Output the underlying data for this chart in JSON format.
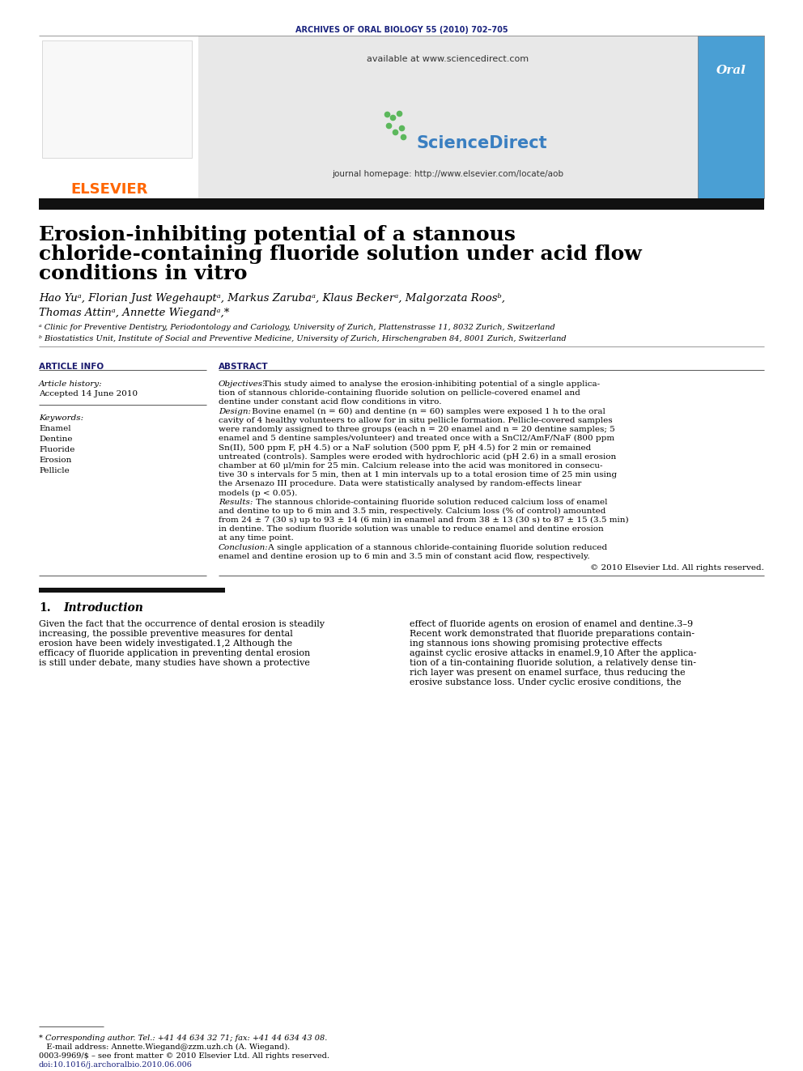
{
  "journal_header": "ARCHIVES OF ORAL BIOLOGY 55 (2010) 702–705",
  "journal_header_color": "#1a237e",
  "available_text": "available at www.sciencedirect.com",
  "journal_homepage": "journal homepage: http://www.elsevier.com/locate/aob",
  "elsevier_color": "#FF6600",
  "title_line1": "Erosion-inhibiting potential of a stannous",
  "title_line2": "chloride-containing fluoride solution under acid flow",
  "title_line3": "conditions in vitro",
  "authors": "Hao Yuᵃ, Florian Just Wegehauptᵃ, Markus Zarubaᵃ, Klaus Beckerᵃ, Malgorzata Roosᵇ,",
  "authors2": "Thomas Attinᵃ, Annette Wiegandᵃ,*",
  "affil_a": "ᵃ Clinic for Preventive Dentistry, Periodontology and Cariology, University of Zurich, Plattenstrasse 11, 8032 Zurich, Switzerland",
  "affil_b": "ᵇ Biostatistics Unit, Institute of Social and Preventive Medicine, University of Zurich, Hirschengraben 84, 8001 Zurich, Switzerland",
  "article_info_header": "ARTICLE INFO",
  "article_history": "Article history:",
  "accepted_date": "Accepted 14 June 2010",
  "keywords_header": "Keywords:",
  "keywords": [
    "Enamel",
    "Dentine",
    "Fluoride",
    "Erosion",
    "Pellicle"
  ],
  "abstract_header": "ABSTRACT",
  "abs_obj_label": "Objectives:",
  "abs_obj_text": " This study aimed to analyse the erosion-inhibiting potential of a single applica-\ntion of stannous chloride-containing fluoride solution on pellicle-covered enamel and\ndentine under constant acid flow conditions in vitro.",
  "abs_des_label": "Design:",
  "abs_des_text": " Bovine enamel (n = 60) and dentine (n = 60) samples were exposed 1 h to the oral\ncavity of 4 healthy volunteers to allow for in situ pellicle formation. Pellicle-covered samples\nwere randomly assigned to three groups (each n = 20 enamel and n = 20 dentine samples; 5\nenamel and 5 dentine samples/volunteer) and treated once with a SnCl2/AmF/NaF (800 ppm\nSn(II), 500 ppm F, pH 4.5) or a NaF solution (500 ppm F, pH 4.5) for 2 min or remained\nuntreated (controls). Samples were eroded with hydrochloric acid (pH 2.6) in a small erosion\nchamber at 60 μl/min for 25 min. Calcium release into the acid was monitored in consecu-\ntive 30 s intervals for 5 min, then at 1 min intervals up to a total erosion time of 25 min using\nthe Arsenazo III procedure. Data were statistically analysed by random-effects linear\nmodels (p < 0.05).",
  "abs_res_label": "Results:",
  "abs_res_text": " The stannous chloride-containing fluoride solution reduced calcium loss of enamel\nand dentine to up to 6 min and 3.5 min, respectively. Calcium loss (% of control) amounted\nfrom 24 ± 7 (30 s) up to 93 ± 14 (6 min) in enamel and from 38 ± 13 (30 s) to 87 ± 15 (3.5 min)\nin dentine. The sodium fluoride solution was unable to reduce enamel and dentine erosion\nat any time point.",
  "abs_con_label": "Conclusion:",
  "abs_con_text": " A single application of a stannous chloride-containing fluoride solution reduced\nenamel and dentine erosion up to 6 min and 3.5 min of constant acid flow, respectively.",
  "abstract_copyright": "© 2010 Elsevier Ltd. All rights reserved.",
  "section1_number": "1.",
  "section1_title": "Introduction",
  "section1_col1_lines": [
    "Given the fact that the occurrence of dental erosion is steadily",
    "increasing, the possible preventive measures for dental",
    "erosion have been widely investigated.1,2 Although the",
    "efficacy of fluoride application in preventing dental erosion",
    "is still under debate, many studies have shown a protective"
  ],
  "section1_col2_lines": [
    "effect of fluoride agents on erosion of enamel and dentine.3–9",
    "Recent work demonstrated that fluoride preparations contain-",
    "ing stannous ions showing promising protective effects",
    "against cyclic erosive attacks in enamel.9,10 After the applica-",
    "tion of a tin-containing fluoride solution, a relatively dense tin-",
    "rich layer was present on enamel surface, thus reducing the",
    "erosive substance loss. Under cyclic erosive conditions, the"
  ],
  "footnote_star": "* Corresponding author. Tel.: +41 44 634 32 71; fax: +41 44 634 43 08.",
  "footnote_email": "   E-mail address: Annette.Wiegand@zzm.uzh.ch (A. Wiegand).",
  "footnote_rights": "0003-9969/$ – see front matter © 2010 Elsevier Ltd. All rights reserved.",
  "footnote_doi": "doi:10.1016/j.archoralbio.2010.06.006",
  "bg_color": "#ffffff"
}
